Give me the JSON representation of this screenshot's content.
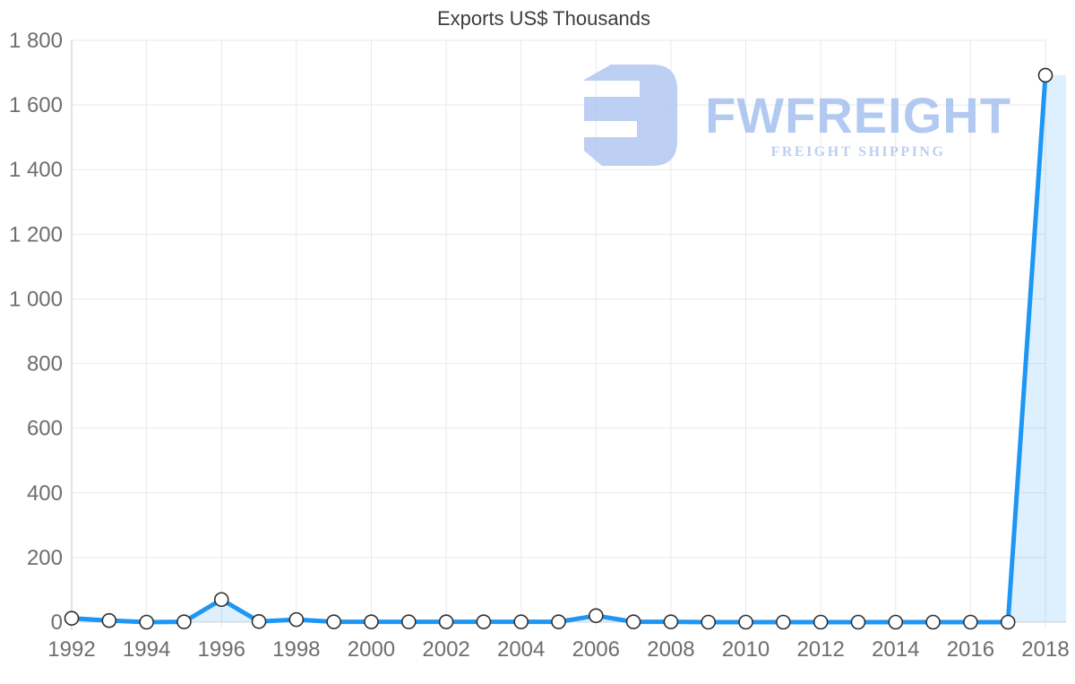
{
  "title": "Exports US$ Thousands",
  "logo": {
    "wordmark": "FWFREIGHT",
    "tagline": "FREIGHT SHIPPING",
    "icon": "fwfreight-monogram",
    "wordmark_color": "#a8c3f0",
    "tagline_color": "#b3c8f2",
    "icon_color": "#b4c9f1"
  },
  "chart_data": {
    "type": "area",
    "title": "Exports US$ Thousands",
    "xlabel": "",
    "ylabel": "",
    "x": [
      1992,
      1993,
      1994,
      1995,
      1996,
      1997,
      1998,
      1999,
      2000,
      2001,
      2002,
      2003,
      2004,
      2005,
      2006,
      2007,
      2008,
      2009,
      2010,
      2011,
      2012,
      2013,
      2014,
      2015,
      2016,
      2017,
      2018
    ],
    "series": [
      {
        "name": "Exports US$ Thousands",
        "values": [
          12,
          5,
          0,
          1,
          70,
          2,
          8,
          1,
          1,
          1,
          1,
          1,
          1,
          1,
          20,
          1,
          1,
          0,
          0,
          0,
          0,
          0,
          0,
          0,
          0,
          0,
          1692
        ]
      }
    ],
    "ylim": [
      0,
      1800
    ],
    "y_tick_step": 200,
    "y_tick_labels": [
      "0",
      "200",
      "400",
      "600",
      "800",
      "1 000",
      "1 200",
      "1 400",
      "1 600",
      "1 800"
    ],
    "x_tick_years": [
      1992,
      1994,
      1996,
      1998,
      2000,
      2002,
      2004,
      2006,
      2008,
      2010,
      2012,
      2014,
      2016,
      2018
    ],
    "grid": true,
    "legend": false
  },
  "colors": {
    "line": "#1e96f3",
    "area_fill": "rgba(33,150,243,0.15)",
    "marker_fill": "#ffffff",
    "marker_stroke": "#2f2f2f",
    "grid": "#e9e9e9",
    "baseline": "#d9d9d9",
    "axis": "#c6c6c6",
    "tick_label": "#6e6e6e",
    "title": "#3d3d3d"
  }
}
